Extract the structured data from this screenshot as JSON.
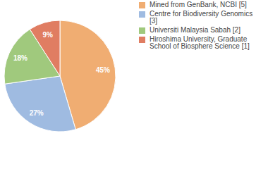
{
  "chart_data": {
    "type": "pie",
    "categories": [
      "Mined from GenBank, NCBI [5]",
      "Centre for Biodiversity Genomics [3]",
      "Universiti Malaysia Sabah [2]",
      "Hiroshima University, Graduate School of Biosphere Science [1]"
    ],
    "values": [
      45,
      27,
      18,
      9
    ],
    "value_labels": [
      "45%",
      "27%",
      "18%",
      "9%"
    ],
    "colors": [
      "#f0ad72",
      "#9fbbe1",
      "#a0c97d",
      "#e07d62"
    ],
    "data_labels": true,
    "legend": "right"
  }
}
